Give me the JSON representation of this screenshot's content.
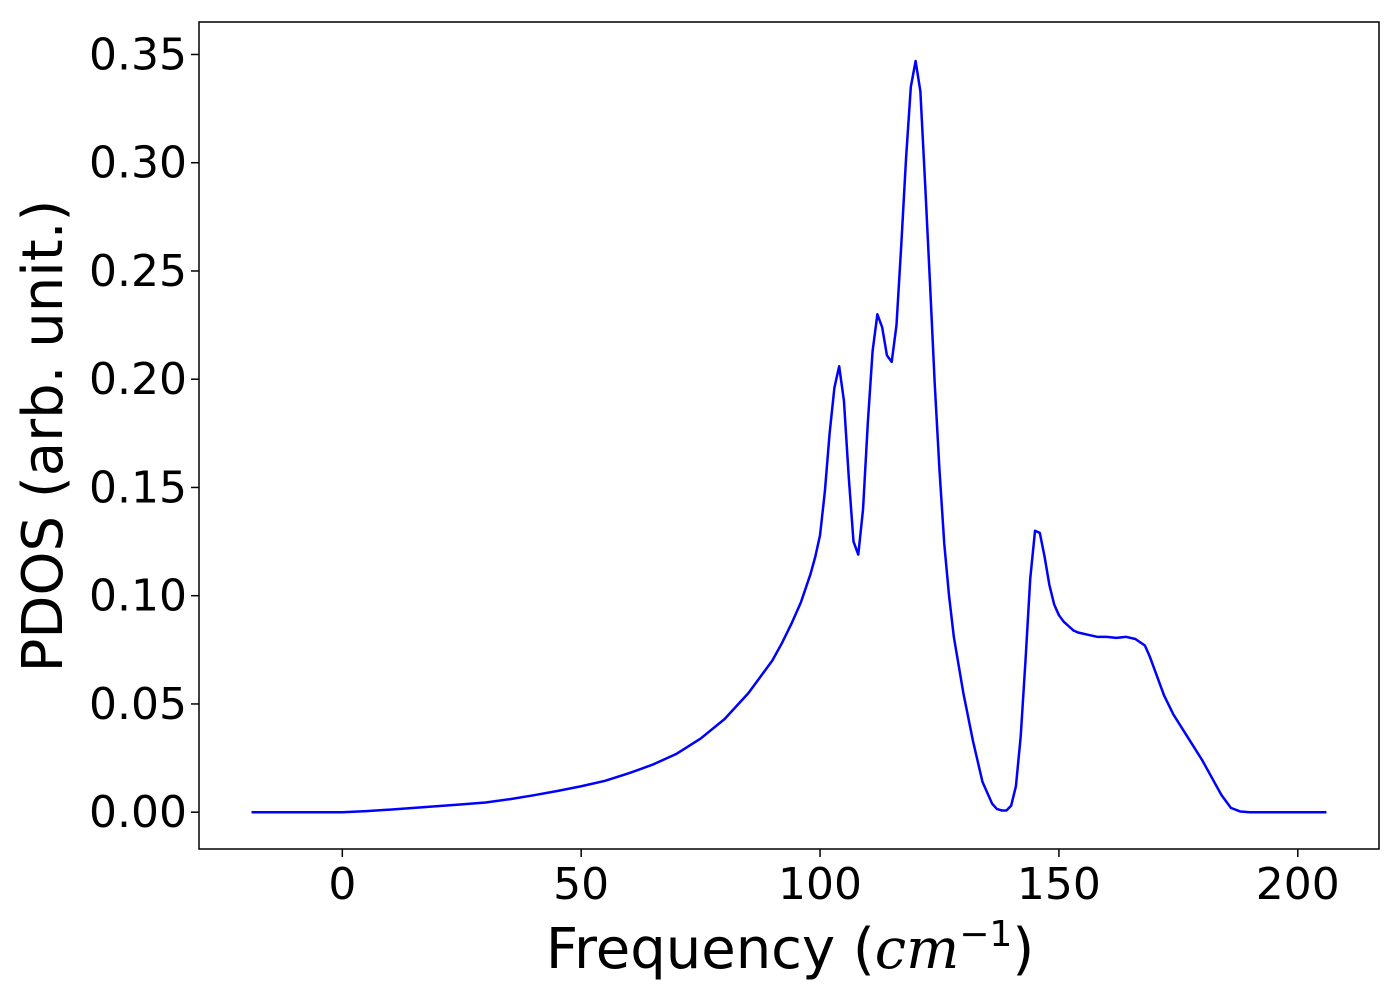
{
  "chart_data": {
    "type": "line",
    "title": "",
    "xlabel_main": "Frequency (",
    "xlabel_unit": "cm",
    "xlabel_exp": "−1",
    "xlabel_close": ")",
    "ylabel": "PDOS (arb. unit.)",
    "xlim": [
      -30,
      217
    ],
    "ylim": [
      -0.017,
      0.365
    ],
    "xticks": [
      0,
      50,
      100,
      150,
      200
    ],
    "xtick_labels": [
      "0",
      "50",
      "100",
      "150",
      "200"
    ],
    "yticks": [
      0.0,
      0.05,
      0.1,
      0.15,
      0.2,
      0.25,
      0.3,
      0.35
    ],
    "ytick_labels": [
      "0.00",
      "0.05",
      "0.10",
      "0.15",
      "0.20",
      "0.25",
      "0.30",
      "0.35"
    ],
    "grid": false,
    "series": [
      {
        "color": "#0000ff",
        "x": [
          -19,
          -10,
          0,
          5,
          10,
          15,
          20,
          25,
          30,
          35,
          40,
          45,
          50,
          55,
          60,
          65,
          70,
          75,
          80,
          85,
          88,
          90,
          92,
          94,
          96,
          98,
          99,
          100,
          101,
          102,
          103,
          104,
          105,
          106,
          107,
          108,
          109,
          110,
          111,
          112,
          113,
          114,
          115,
          116,
          117,
          118,
          119,
          120,
          121,
          122,
          123,
          124,
          125,
          126,
          127,
          128,
          130,
          132,
          134,
          136,
          137,
          138,
          139,
          140,
          141,
          142,
          143,
          144,
          145,
          146,
          147,
          148,
          149,
          150,
          151,
          152,
          153,
          154,
          156,
          158,
          160,
          162,
          164,
          166,
          168,
          169,
          170,
          172,
          174,
          176,
          178,
          180,
          182,
          184,
          186,
          188,
          190,
          192,
          195,
          200,
          206
        ],
        "y": [
          0.0,
          0.0,
          0.0,
          0.0005,
          0.0012,
          0.002,
          0.0028,
          0.0036,
          0.0045,
          0.006,
          0.0078,
          0.0098,
          0.012,
          0.0145,
          0.018,
          0.022,
          0.027,
          0.034,
          0.043,
          0.055,
          0.064,
          0.07,
          0.078,
          0.087,
          0.097,
          0.11,
          0.118,
          0.128,
          0.148,
          0.175,
          0.196,
          0.206,
          0.19,
          0.155,
          0.125,
          0.119,
          0.14,
          0.18,
          0.213,
          0.23,
          0.224,
          0.211,
          0.208,
          0.225,
          0.262,
          0.302,
          0.335,
          0.347,
          0.333,
          0.29,
          0.245,
          0.198,
          0.158,
          0.124,
          0.1,
          0.081,
          0.055,
          0.033,
          0.014,
          0.004,
          0.0015,
          0.0008,
          0.0008,
          0.003,
          0.012,
          0.035,
          0.07,
          0.108,
          0.13,
          0.129,
          0.118,
          0.105,
          0.096,
          0.091,
          0.088,
          0.086,
          0.084,
          0.083,
          0.082,
          0.081,
          0.081,
          0.0805,
          0.081,
          0.08,
          0.077,
          0.072,
          0.066,
          0.054,
          0.045,
          0.038,
          0.031,
          0.024,
          0.016,
          0.008,
          0.002,
          0.0003,
          0.0,
          0.0,
          0.0,
          0.0,
          0.0
        ]
      }
    ]
  }
}
